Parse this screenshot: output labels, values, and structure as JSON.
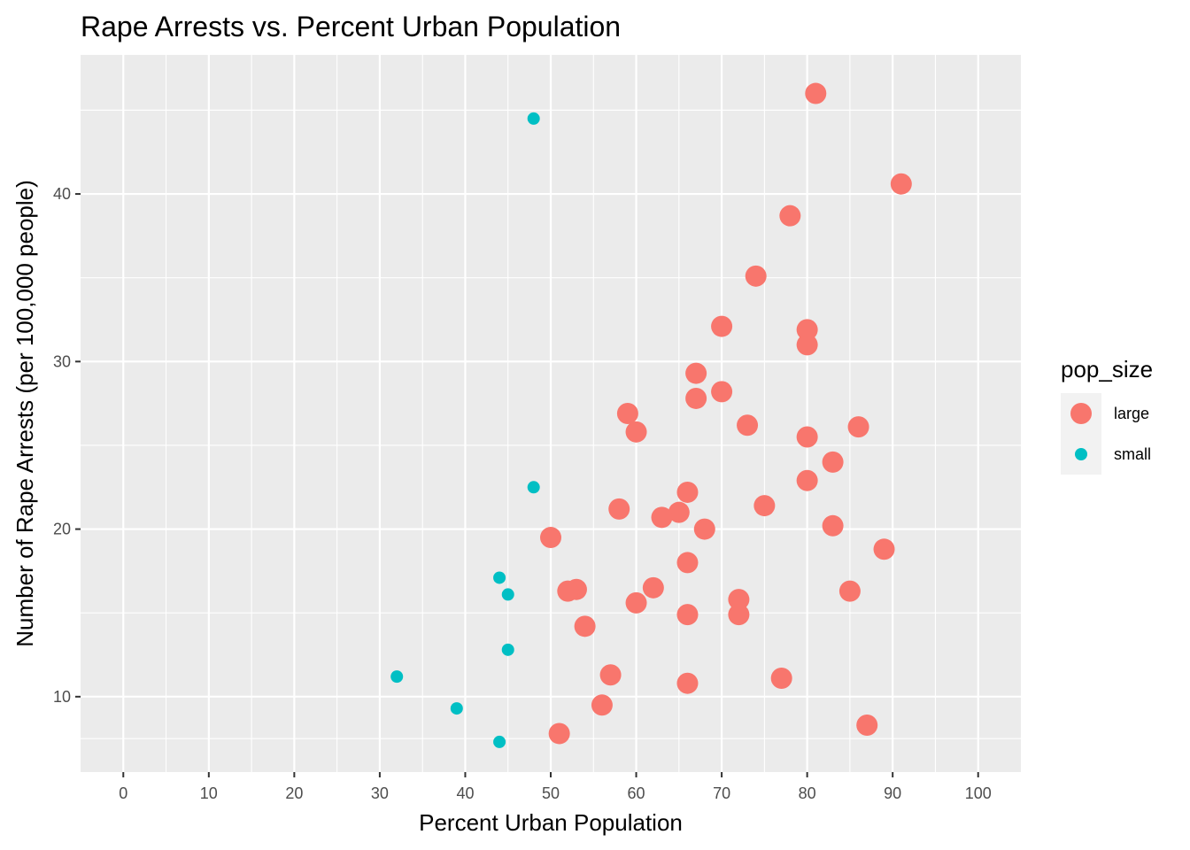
{
  "chart_data": {
    "type": "scatter",
    "title": "Rape Arrests vs. Percent Urban Population",
    "xlabel": "Percent Urban Population",
    "ylabel": "Number of Rape Arrests (per 100,000 people)",
    "xlim": [
      -5,
      105
    ],
    "ylim": [
      5.5,
      48.3
    ],
    "x_ticks": [
      0,
      10,
      20,
      30,
      40,
      50,
      60,
      70,
      80,
      90,
      100
    ],
    "y_ticks": [
      10,
      20,
      30,
      40
    ],
    "grid": true,
    "legend": {
      "title": "pop_size",
      "position": "right"
    },
    "series": [
      {
        "name": "large",
        "color": "#F8766D",
        "points": [
          [
            81,
            46.0
          ],
          [
            91,
            40.6
          ],
          [
            78,
            38.7
          ],
          [
            74,
            35.1
          ],
          [
            70,
            32.1
          ],
          [
            80,
            31.9
          ],
          [
            80,
            31.0
          ],
          [
            67,
            29.3
          ],
          [
            70,
            28.2
          ],
          [
            67,
            27.8
          ],
          [
            59,
            26.9
          ],
          [
            73,
            26.2
          ],
          [
            86,
            26.1
          ],
          [
            60,
            25.8
          ],
          [
            80,
            25.5
          ],
          [
            83,
            24.0
          ],
          [
            80,
            22.9
          ],
          [
            66,
            22.2
          ],
          [
            75,
            21.4
          ],
          [
            58,
            21.2
          ],
          [
            65,
            21.0
          ],
          [
            63,
            20.7
          ],
          [
            83,
            20.2
          ],
          [
            68,
            20.0
          ],
          [
            50,
            19.5
          ],
          [
            89,
            18.8
          ],
          [
            66,
            18.0
          ],
          [
            62,
            16.5
          ],
          [
            53,
            16.4
          ],
          [
            52,
            16.3
          ],
          [
            85,
            16.3
          ],
          [
            72,
            15.8
          ],
          [
            60,
            15.6
          ],
          [
            66,
            14.9
          ],
          [
            72,
            14.9
          ],
          [
            54,
            14.2
          ],
          [
            57,
            11.3
          ],
          [
            77,
            11.1
          ],
          [
            66,
            10.8
          ],
          [
            56,
            9.5
          ],
          [
            87,
            8.3
          ],
          [
            51,
            7.8
          ]
        ]
      },
      {
        "name": "small",
        "color": "#00BFC4",
        "points": [
          [
            48,
            44.5
          ],
          [
            48,
            22.5
          ],
          [
            44,
            17.1
          ],
          [
            45,
            16.1
          ],
          [
            45,
            12.8
          ],
          [
            32,
            11.2
          ],
          [
            39,
            9.3
          ],
          [
            44,
            7.3
          ]
        ]
      }
    ]
  }
}
